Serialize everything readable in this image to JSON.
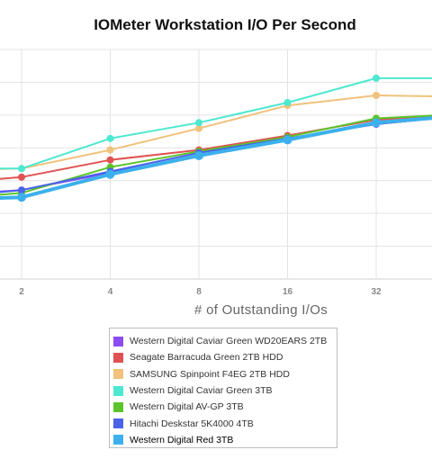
{
  "chart_data": {
    "type": "line",
    "title": "IOMeter Workstation I/O Per Second",
    "xlabel": "# of Outstanding I/Os",
    "ylabel": "",
    "x": [
      1,
      2,
      4,
      8,
      16,
      32,
      64
    ],
    "xticks": [
      "2",
      "4",
      "8",
      "16",
      "32"
    ],
    "ylim": [
      0,
      800
    ],
    "grid": true,
    "legend_placement": "bottom",
    "series": [
      {
        "name": "Western Digital Caviar Green WD20EARS 2TB",
        "color": "#8b4cf2",
        "values": [
          290,
          310,
          370,
          430,
          490,
          540,
          570
        ]
      },
      {
        "name": "Seagate Barracuda Green 2TB HDD",
        "color": "#e05252",
        "values": [
          330,
          355,
          415,
          450,
          500,
          555,
          575
        ]
      },
      {
        "name": "SAMSUNG Spinpoint F4EG 2TB HDD",
        "color": "#f0c27b",
        "values": [
          380,
          385,
          450,
          525,
          605,
          640,
          635
        ]
      },
      {
        "name": "Western Digital Caviar Green 3TB",
        "color": "#4de8d0",
        "values": [
          385,
          385,
          490,
          545,
          615,
          700,
          700
        ]
      },
      {
        "name": "Western Digital AV-GP 3TB",
        "color": "#5cc42b",
        "values": [
          275,
          300,
          390,
          445,
          495,
          560,
          575
        ]
      },
      {
        "name": "Hitachi Deskstar 5K4000 4TB",
        "color": "#4a63e8",
        "values": [
          280,
          310,
          375,
          440,
          490,
          540,
          570
        ]
      },
      {
        "name": "Western Digital Red 3TB",
        "color": "#3cb0ec",
        "values": [
          275,
          285,
          365,
          430,
          485,
          545,
          570
        ]
      }
    ]
  }
}
